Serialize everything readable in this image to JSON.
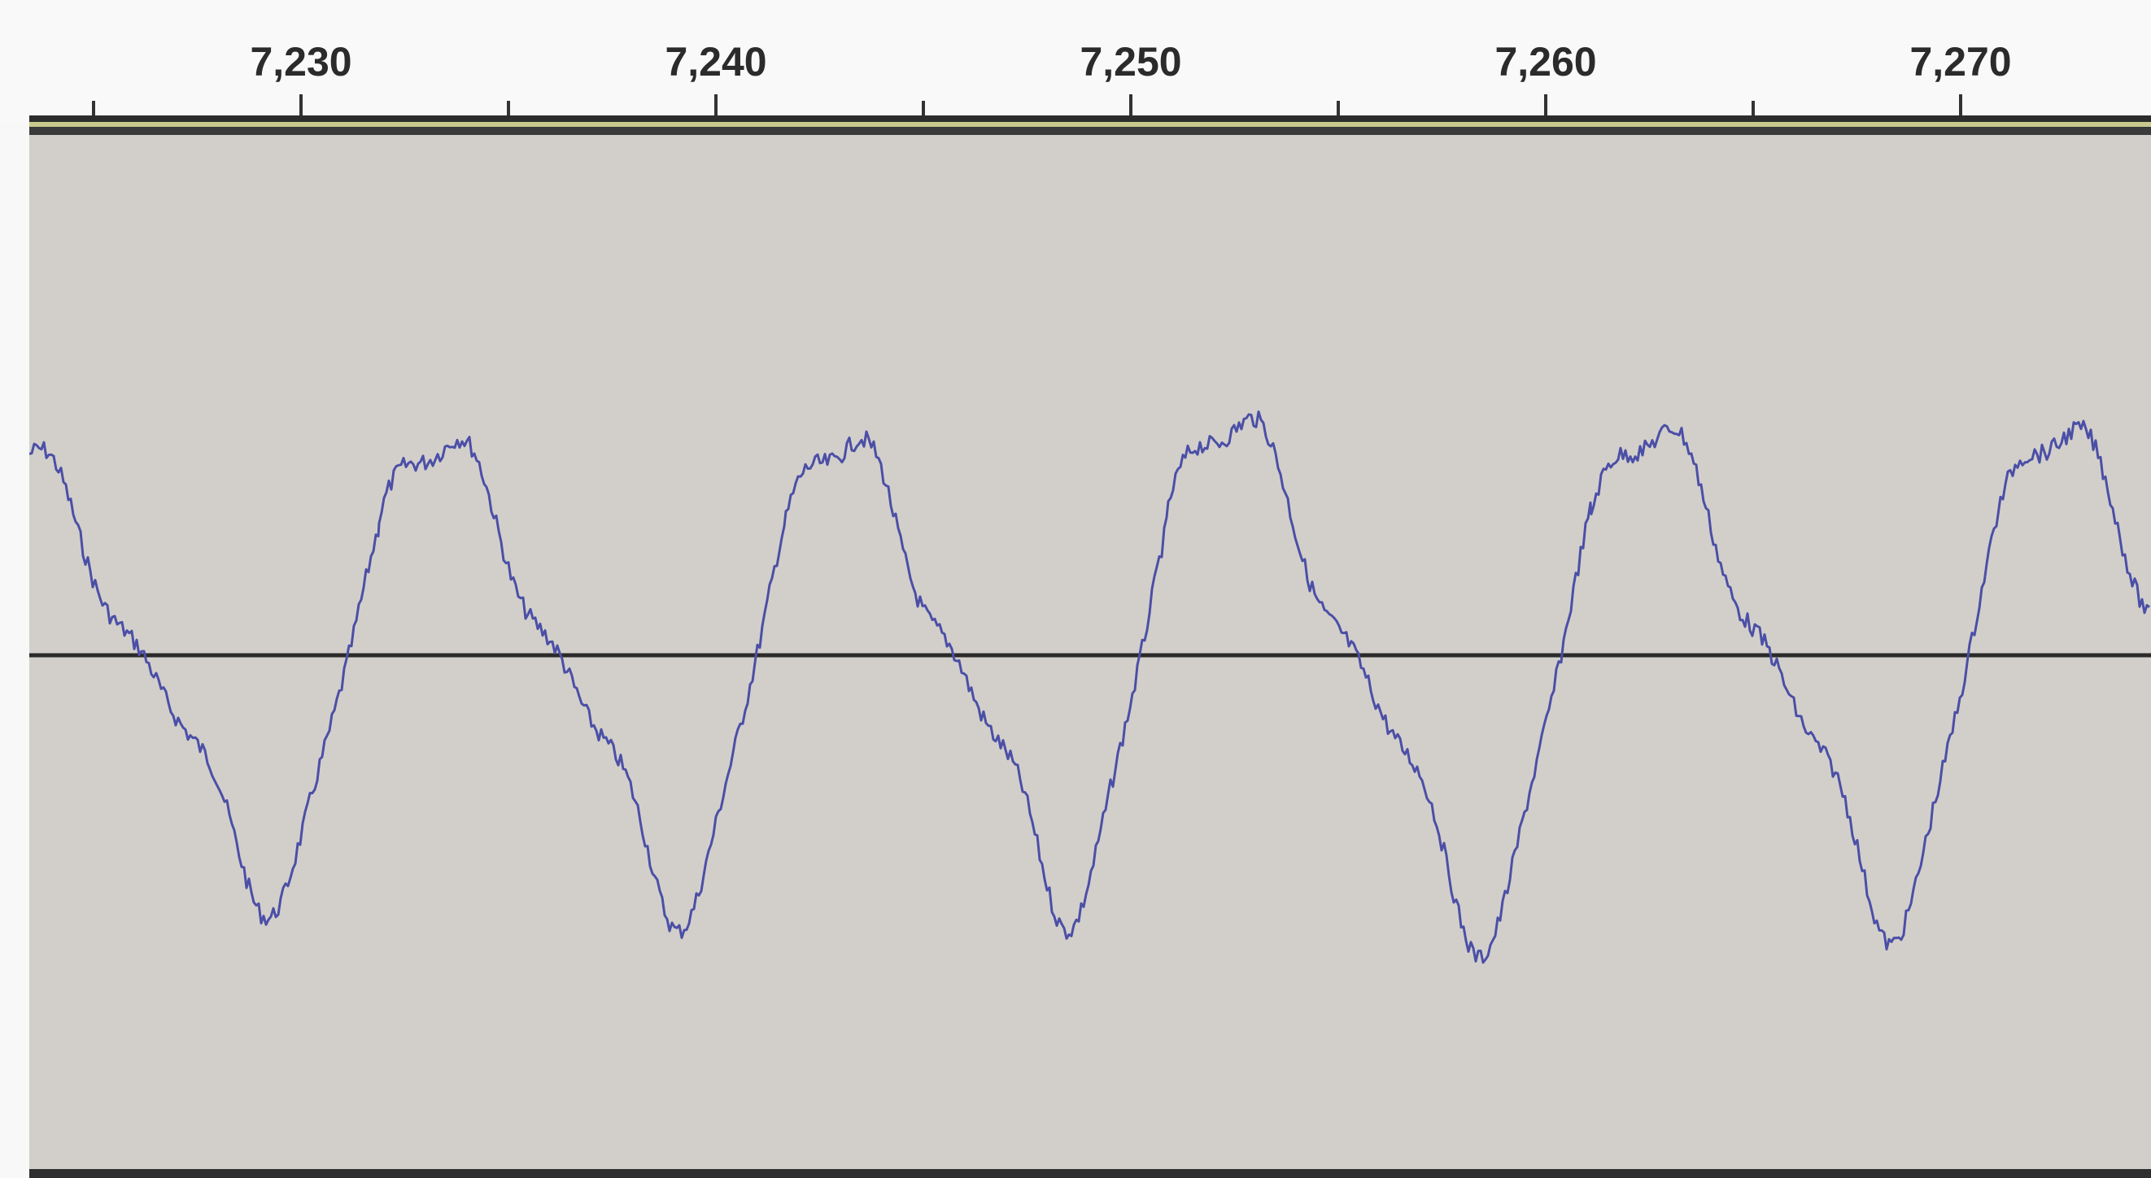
{
  "timeline": {
    "ticks": [
      "7,230",
      "7,240",
      "7,250",
      "7,260",
      "7,270"
    ],
    "tick_values": [
      7230,
      7240,
      7250,
      7260,
      7270
    ],
    "range": [
      7228.5,
      7274.5
    ]
  },
  "waveform": {
    "color": "#4b4fa6",
    "baseline_color": "#2a2a2a",
    "background": "#d2cfcb"
  }
}
